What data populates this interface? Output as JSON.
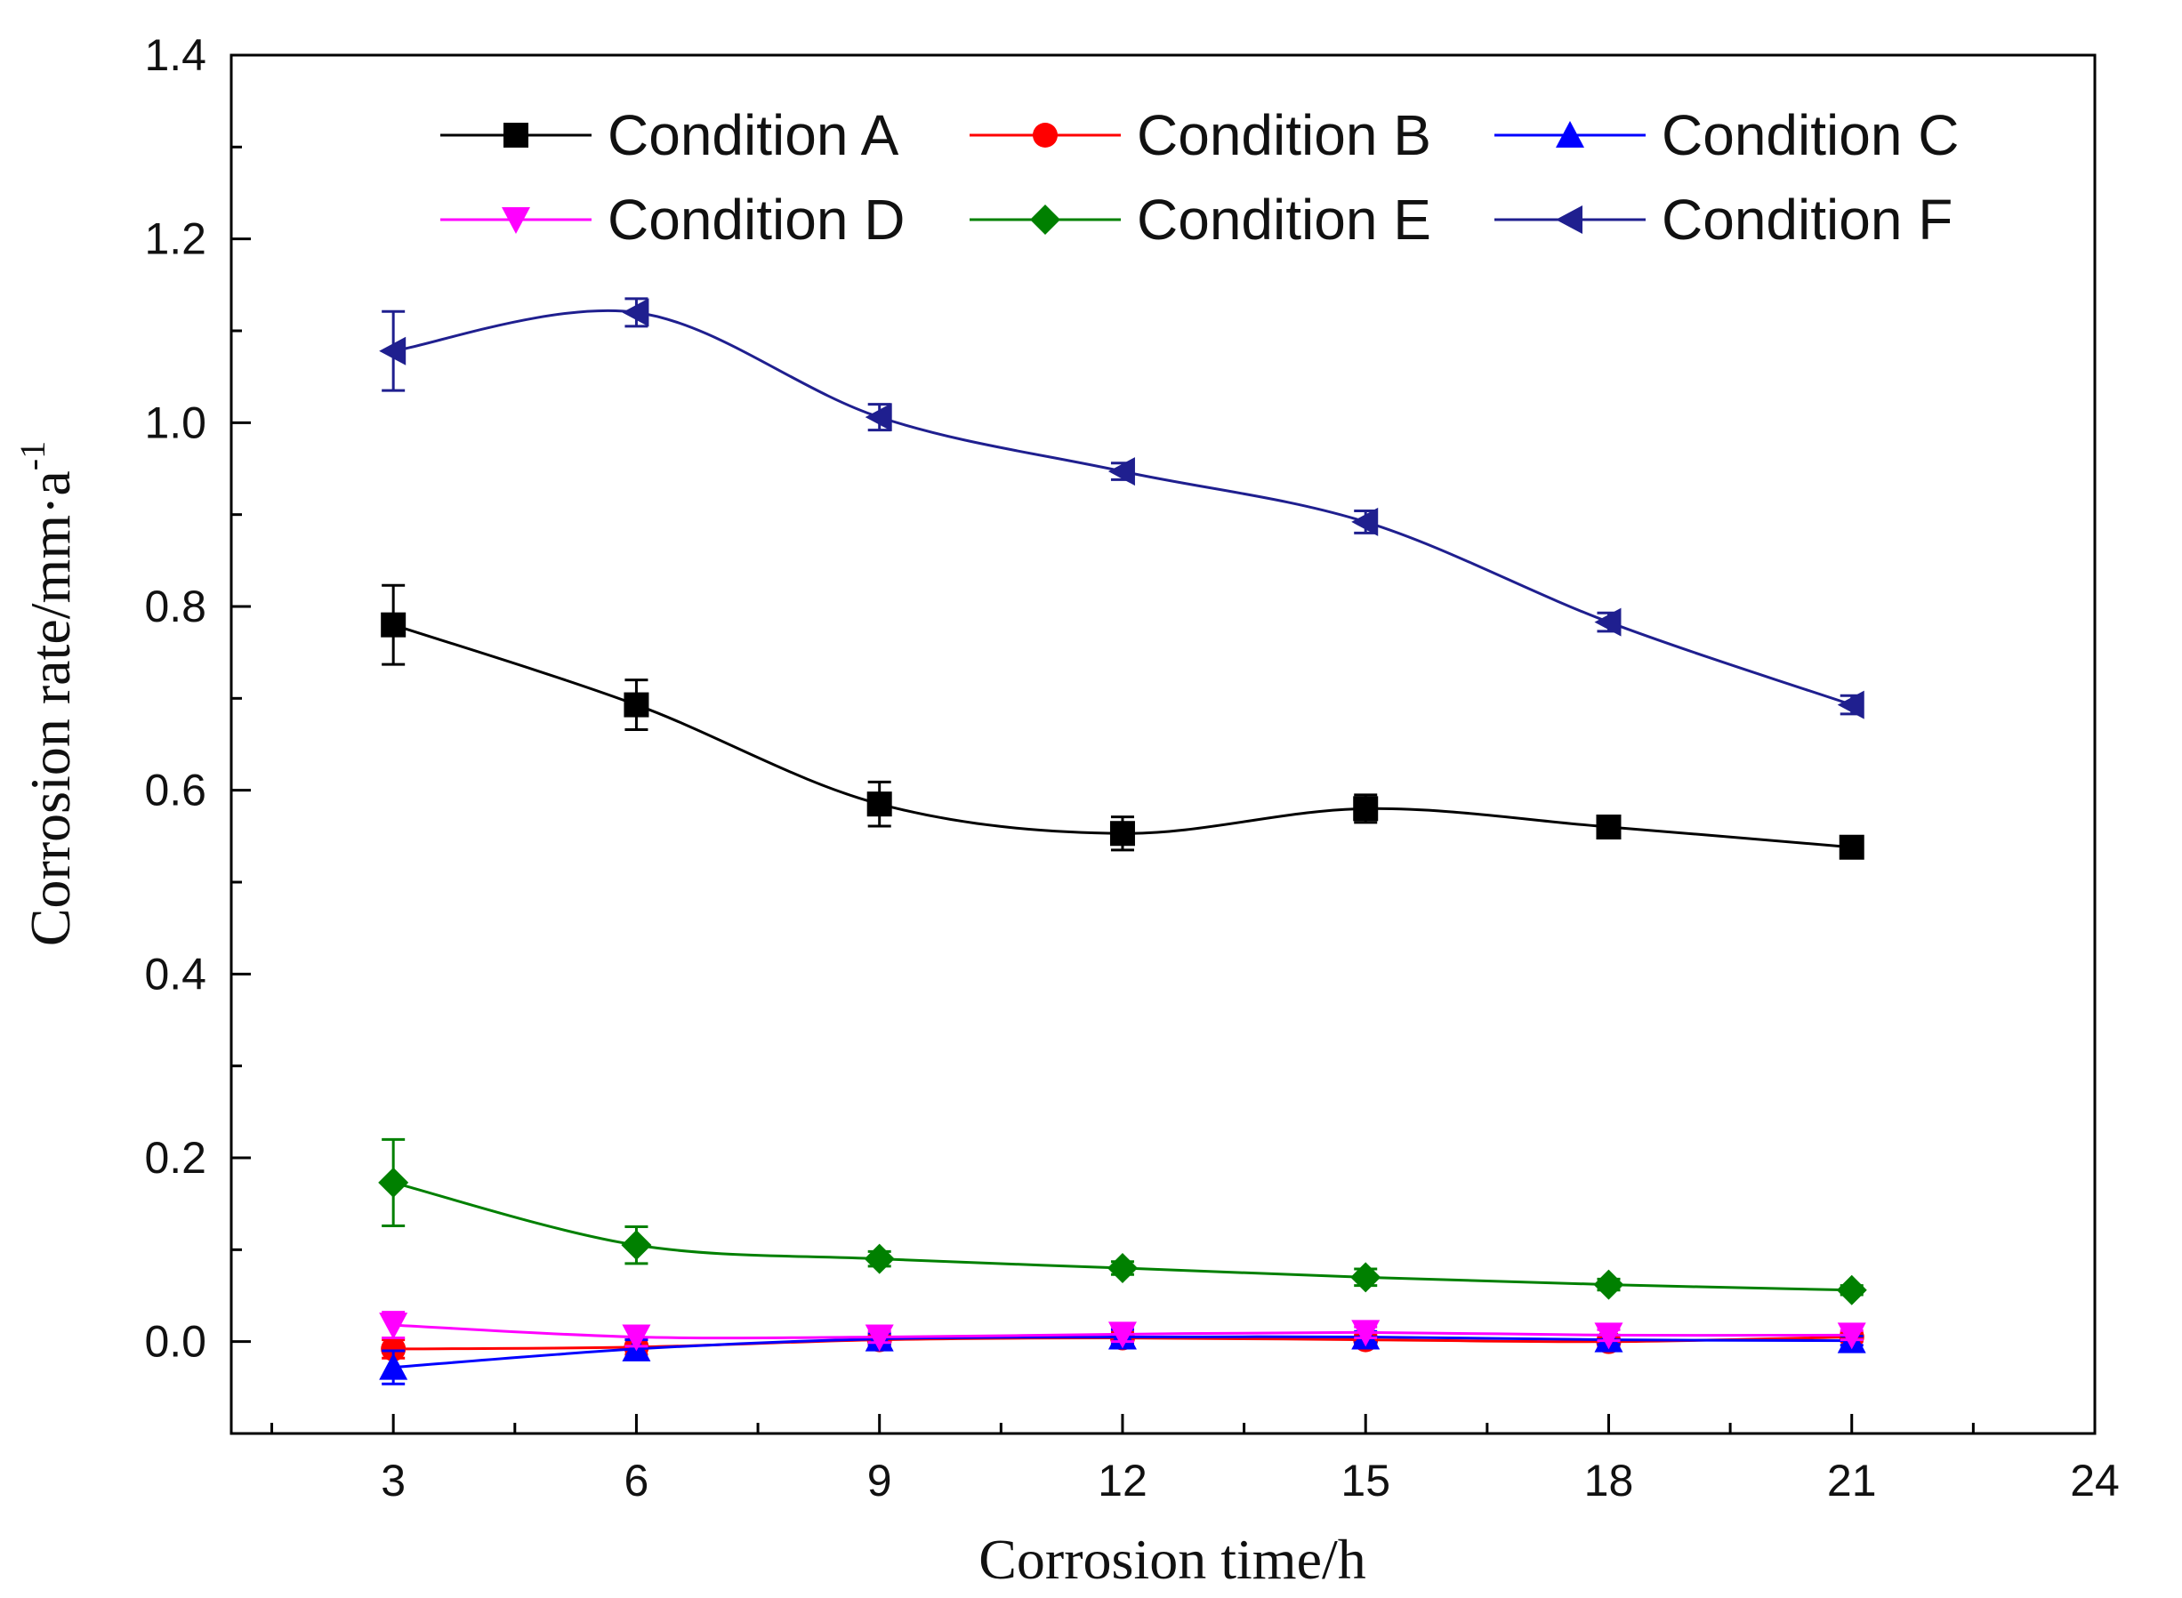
{
  "chart_data": {
    "type": "line",
    "title": "",
    "xlabel": "Corrosion time/h",
    "ylabel": "Corrosion rate/mm·a",
    "ylabel_superscript": "-1",
    "xlim": [
      1.0,
      24.0
    ],
    "ylim": [
      -0.1,
      1.4
    ],
    "xticks": [
      3,
      6,
      9,
      12,
      15,
      18,
      21,
      24
    ],
    "yticks": [
      0.0,
      0.2,
      0.4,
      0.6,
      0.8,
      1.0,
      1.2,
      1.4
    ],
    "ytick_labels": [
      "0.0",
      "0.2",
      "0.4",
      "0.6",
      "0.8",
      "1.0",
      "1.2",
      "1.4"
    ],
    "grid": false,
    "legend_position": "top",
    "x": [
      3,
      6,
      9,
      12,
      15,
      18,
      21
    ],
    "series": [
      {
        "name": "Condition A",
        "color": "#000000",
        "marker": "square",
        "values": [
          0.78,
          0.693,
          0.585,
          0.553,
          0.58,
          0.56,
          0.538
        ],
        "errors": [
          0.043,
          0.027,
          0.024,
          0.018,
          0.015,
          0.012,
          0.007
        ]
      },
      {
        "name": "Condition B",
        "color": "#ff0000",
        "marker": "circle",
        "values": [
          -0.008,
          -0.006,
          0.002,
          0.004,
          0.002,
          0.0,
          0.005
        ],
        "errors": [
          0.01,
          0.008,
          0.006,
          0.006,
          0.005,
          0.005,
          0.005
        ]
      },
      {
        "name": "Condition C",
        "color": "#0000ff",
        "marker": "triangle-up",
        "values": [
          -0.028,
          -0.008,
          0.003,
          0.005,
          0.005,
          0.002,
          0.001
        ],
        "errors": [
          0.018,
          0.01,
          0.006,
          0.008,
          0.006,
          0.005,
          0.005
        ]
      },
      {
        "name": "Condition D",
        "color": "#ff00ff",
        "marker": "triangle-down",
        "values": [
          0.018,
          0.005,
          0.005,
          0.008,
          0.01,
          0.007,
          0.007
        ],
        "errors": [
          0.014,
          0.01,
          0.006,
          0.008,
          0.006,
          0.006,
          0.005
        ]
      },
      {
        "name": "Condition E",
        "color": "#008000",
        "marker": "diamond",
        "values": [
          0.173,
          0.105,
          0.09,
          0.08,
          0.07,
          0.062,
          0.056
        ],
        "errors": [
          0.047,
          0.02,
          0.008,
          0.007,
          0.009,
          0.006,
          0.005
        ]
      },
      {
        "name": "Condition F",
        "color": "#1f1f8f",
        "marker": "triangle-left",
        "values": [
          1.078,
          1.12,
          1.006,
          0.947,
          0.892,
          0.783,
          0.693
        ],
        "errors": [
          0.043,
          0.015,
          0.014,
          0.009,
          0.012,
          0.01,
          0.01
        ]
      }
    ]
  }
}
